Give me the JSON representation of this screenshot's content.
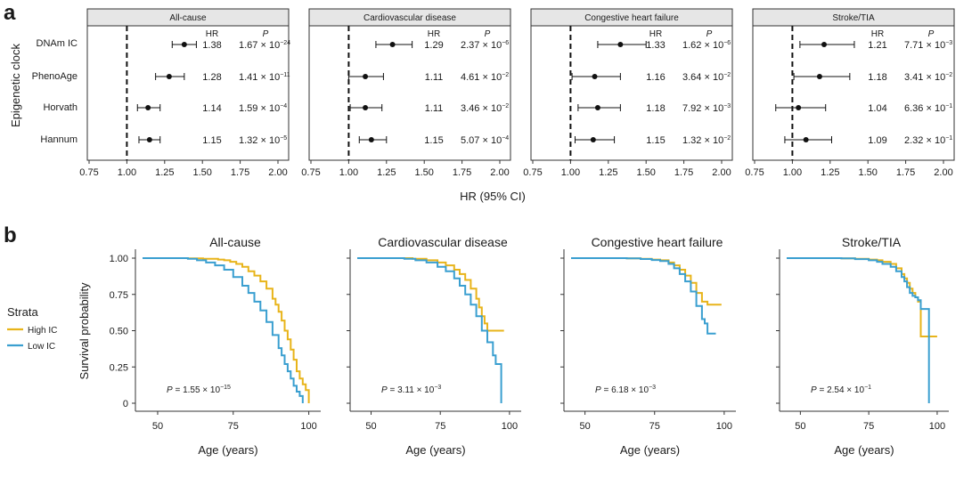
{
  "panel_a": {
    "letter": "a",
    "ylabel": "Epigenetic clock",
    "xlabel": "HR (95% CI)",
    "col_hr": "HR",
    "col_p": "P",
    "rows": [
      "DNAm IC",
      "PhenoAge",
      "Horvath",
      "Hannum"
    ],
    "ticks": [
      "0.75",
      "1.00",
      "1.25",
      "1.50",
      "1.75",
      "2.00"
    ]
  },
  "panel_b": {
    "letter": "b",
    "ylabel": "Survival probability",
    "xlabel": "Age (years)",
    "legend_title": "Strata",
    "legend_items": [
      {
        "label": "High IC",
        "color": "#e8b41a"
      },
      {
        "label": "Low IC",
        "color": "#3a9fd0"
      }
    ],
    "y_ticks": [
      "1.00",
      "0.75",
      "0.50",
      "0.25",
      "0"
    ],
    "x_ticks": [
      "50",
      "75",
      "100"
    ]
  },
  "chart_data": [
    {
      "type": "forest",
      "title": "All-cause",
      "xlim": [
        0.75,
        2.0
      ],
      "reference_line": 1.0,
      "rows": [
        {
          "clock": "DNAm IC",
          "hr": 1.38,
          "lo": 1.3,
          "hi": 1.46,
          "hr_label": "1.38",
          "p_base": "1.67 × 10",
          "p_exp": "−24"
        },
        {
          "clock": "PhenoAge",
          "hr": 1.28,
          "lo": 1.19,
          "hi": 1.38,
          "hr_label": "1.28",
          "p_base": "1.41 × 10",
          "p_exp": "−11"
        },
        {
          "clock": "Horvath",
          "hr": 1.14,
          "lo": 1.07,
          "hi": 1.22,
          "hr_label": "1.14",
          "p_base": "1.59 × 10",
          "p_exp": "−4"
        },
        {
          "clock": "Hannum",
          "hr": 1.15,
          "lo": 1.08,
          "hi": 1.22,
          "hr_label": "1.15",
          "p_base": "1.32 × 10",
          "p_exp": "−5"
        }
      ]
    },
    {
      "type": "forest",
      "title": "Cardiovascular disease",
      "xlim": [
        0.75,
        2.0
      ],
      "reference_line": 1.0,
      "rows": [
        {
          "clock": "DNAm IC",
          "hr": 1.29,
          "lo": 1.18,
          "hi": 1.42,
          "hr_label": "1.29",
          "p_base": "2.37 × 10",
          "p_exp": "−6"
        },
        {
          "clock": "PhenoAge",
          "hr": 1.11,
          "lo": 1.0,
          "hi": 1.23,
          "hr_label": "1.11",
          "p_base": "4.61 × 10",
          "p_exp": "−2"
        },
        {
          "clock": "Horvath",
          "hr": 1.11,
          "lo": 1.01,
          "hi": 1.22,
          "hr_label": "1.11",
          "p_base": "3.46 × 10",
          "p_exp": "−2"
        },
        {
          "clock": "Hannum",
          "hr": 1.15,
          "lo": 1.07,
          "hi": 1.25,
          "hr_label": "1.15",
          "p_base": "5.07 × 10",
          "p_exp": "−4"
        }
      ]
    },
    {
      "type": "forest",
      "title": "Congestive heart failure",
      "xlim": [
        0.75,
        2.0
      ],
      "reference_line": 1.0,
      "rows": [
        {
          "clock": "DNAm IC",
          "hr": 1.33,
          "lo": 1.18,
          "hi": 1.5,
          "hr_label": "1.33",
          "p_base": "1.62 × 10",
          "p_exp": "−6"
        },
        {
          "clock": "PhenoAge",
          "hr": 1.16,
          "lo": 1.01,
          "hi": 1.33,
          "hr_label": "1.16",
          "p_base": "3.64 × 10",
          "p_exp": "−2"
        },
        {
          "clock": "Horvath",
          "hr": 1.18,
          "lo": 1.05,
          "hi": 1.33,
          "hr_label": "1.18",
          "p_base": "7.92 × 10",
          "p_exp": "−3"
        },
        {
          "clock": "Hannum",
          "hr": 1.15,
          "lo": 1.03,
          "hi": 1.29,
          "hr_label": "1.15",
          "p_base": "1.32 × 10",
          "p_exp": "−2"
        }
      ]
    },
    {
      "type": "forest",
      "title": "Stroke/TIA",
      "xlim": [
        0.75,
        2.0
      ],
      "reference_line": 1.0,
      "rows": [
        {
          "clock": "DNAm IC",
          "hr": 1.21,
          "lo": 1.05,
          "hi": 1.41,
          "hr_label": "1.21",
          "p_base": "7.71 × 10",
          "p_exp": "−3"
        },
        {
          "clock": "PhenoAge",
          "hr": 1.18,
          "lo": 1.01,
          "hi": 1.38,
          "hr_label": "1.18",
          "p_base": "3.41 × 10",
          "p_exp": "−2"
        },
        {
          "clock": "Horvath",
          "hr": 1.04,
          "lo": 0.89,
          "hi": 1.22,
          "hr_label": "1.04",
          "p_base": "6.36 × 10",
          "p_exp": "−1"
        },
        {
          "clock": "Hannum",
          "hr": 1.09,
          "lo": 0.95,
          "hi": 1.26,
          "hr_label": "1.09",
          "p_base": "2.32 × 10",
          "p_exp": "−1"
        }
      ]
    },
    {
      "type": "survival",
      "title": "All-cause",
      "xlim": [
        45,
        101
      ],
      "ylim": [
        0,
        1
      ],
      "p_base": "P = 1.55 × 10",
      "p_exp": "−15",
      "series": [
        {
          "name": "High IC",
          "x": [
            45,
            55,
            60,
            65,
            70,
            72,
            74,
            76,
            78,
            80,
            82,
            84,
            86,
            88,
            89,
            90,
            91,
            92,
            93,
            94,
            95,
            96,
            97,
            98,
            99,
            100,
            100
          ],
          "y": [
            1.0,
            1.0,
            0.998,
            0.995,
            0.99,
            0.985,
            0.975,
            0.96,
            0.94,
            0.91,
            0.88,
            0.84,
            0.79,
            0.72,
            0.68,
            0.63,
            0.57,
            0.5,
            0.44,
            0.37,
            0.3,
            0.22,
            0.17,
            0.13,
            0.09,
            0.09,
            0.0
          ]
        },
        {
          "name": "Low IC",
          "x": [
            45,
            55,
            60,
            63,
            66,
            69,
            72,
            75,
            78,
            80,
            82,
            84,
            86,
            88,
            90,
            91,
            92,
            93,
            94,
            95,
            96,
            97,
            98,
            98
          ],
          "y": [
            1.0,
            1.0,
            0.995,
            0.985,
            0.97,
            0.95,
            0.92,
            0.87,
            0.81,
            0.76,
            0.7,
            0.64,
            0.56,
            0.47,
            0.38,
            0.33,
            0.27,
            0.22,
            0.17,
            0.12,
            0.08,
            0.05,
            0.03,
            0.0
          ]
        }
      ]
    },
    {
      "type": "survival",
      "title": "Cardiovascular disease",
      "xlim": [
        45,
        101
      ],
      "ylim": [
        0,
        1
      ],
      "p_base": "P = 3.11 × 10",
      "p_exp": "−3",
      "series": [
        {
          "name": "High IC",
          "x": [
            45,
            60,
            65,
            70,
            74,
            77,
            80,
            82,
            84,
            86,
            88,
            89,
            90,
            91,
            92,
            95,
            98
          ],
          "y": [
            1.0,
            1.0,
            0.995,
            0.985,
            0.97,
            0.95,
            0.92,
            0.89,
            0.85,
            0.79,
            0.72,
            0.66,
            0.6,
            0.55,
            0.5,
            0.5,
            0.5
          ]
        },
        {
          "name": "Low IC",
          "x": [
            45,
            58,
            62,
            66,
            70,
            74,
            77,
            80,
            82,
            84,
            86,
            88,
            90,
            92,
            94,
            95,
            97,
            97
          ],
          "y": [
            1.0,
            1.0,
            0.995,
            0.985,
            0.97,
            0.94,
            0.91,
            0.86,
            0.81,
            0.75,
            0.68,
            0.6,
            0.5,
            0.42,
            0.33,
            0.27,
            0.27,
            0.0
          ]
        }
      ]
    },
    {
      "type": "survival",
      "title": "Congestive heart failure",
      "xlim": [
        45,
        101
      ],
      "ylim": [
        0,
        1
      ],
      "p_base": "P = 6.18 × 10",
      "p_exp": "−3",
      "series": [
        {
          "name": "High IC",
          "x": [
            45,
            60,
            65,
            70,
            74,
            77,
            80,
            82,
            84,
            86,
            88,
            90,
            92,
            94,
            95,
            96,
            99
          ],
          "y": [
            1.0,
            1.0,
            0.998,
            0.995,
            0.99,
            0.985,
            0.97,
            0.95,
            0.92,
            0.88,
            0.83,
            0.76,
            0.7,
            0.68,
            0.68,
            0.68,
            0.68
          ]
        },
        {
          "name": "Low IC",
          "x": [
            45,
            60,
            65,
            70,
            74,
            77,
            80,
            82,
            84,
            86,
            88,
            90,
            92,
            93,
            94,
            96,
            97
          ],
          "y": [
            1.0,
            1.0,
            0.998,
            0.994,
            0.987,
            0.98,
            0.96,
            0.93,
            0.89,
            0.84,
            0.77,
            0.67,
            0.58,
            0.55,
            0.48,
            0.48,
            0.48
          ]
        }
      ]
    },
    {
      "type": "survival",
      "title": "Stroke/TIA",
      "xlim": [
        45,
        101
      ],
      "ylim": [
        0,
        1
      ],
      "p_base": "P = 2.54 × 10",
      "p_exp": "−1",
      "series": [
        {
          "name": "High IC",
          "x": [
            45,
            60,
            65,
            70,
            75,
            78,
            80,
            83,
            85,
            87,
            88,
            89,
            90,
            91,
            92,
            93,
            94,
            94,
            95,
            97,
            100
          ],
          "y": [
            1.0,
            1.0,
            0.998,
            0.995,
            0.99,
            0.985,
            0.975,
            0.96,
            0.93,
            0.89,
            0.86,
            0.83,
            0.79,
            0.76,
            0.73,
            0.7,
            0.65,
            0.46,
            0.46,
            0.46,
            0.46
          ]
        },
        {
          "name": "Low IC",
          "x": [
            45,
            60,
            65,
            70,
            75,
            78,
            80,
            83,
            85,
            87,
            88,
            89,
            90,
            91,
            92,
            93,
            94,
            96,
            97,
            97
          ],
          "y": [
            1.0,
            1.0,
            0.998,
            0.993,
            0.985,
            0.975,
            0.96,
            0.94,
            0.91,
            0.87,
            0.84,
            0.8,
            0.76,
            0.74,
            0.73,
            0.71,
            0.65,
            0.65,
            0.65,
            0.0
          ]
        }
      ]
    }
  ]
}
